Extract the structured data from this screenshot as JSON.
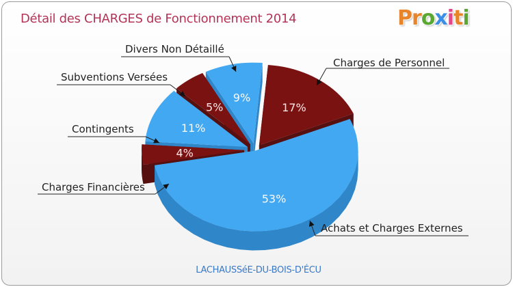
{
  "title": "Détail des CHARGES de Fonctionnement 2014",
  "logo": {
    "letters": [
      "P",
      "r",
      "o",
      "x",
      "i",
      "t",
      "i"
    ],
    "colors": [
      "#e8842a",
      "#e8842a",
      "#5aa832",
      "#3a8ee6",
      "#e04a8a",
      "#e8842a",
      "#5aa832"
    ]
  },
  "commune": "LACHAUSSéE-DU-BOIS-D'ÉCU",
  "colors": {
    "title": "#b33356",
    "blue": "#43a8f2",
    "blue_side": "#2f86c8",
    "red": "#7a1212",
    "red_side": "#571010",
    "label_text": "#222222",
    "commune": "#3a78c8"
  },
  "chart_data": {
    "type": "pie",
    "title": "Détail des CHARGES de Fonctionnement 2014",
    "slices": [
      {
        "label": "Charges de Personnel",
        "value": 17,
        "display": "17%",
        "color": "red"
      },
      {
        "label": "Achats et Charges Externes",
        "value": 53,
        "display": "53%",
        "color": "blue"
      },
      {
        "label": "Charges Financières",
        "value": 4,
        "display": "4%",
        "color": "red"
      },
      {
        "label": "Contingents",
        "value": 11,
        "display": "11%",
        "color": "blue"
      },
      {
        "label": "Subventions Versées",
        "value": 5,
        "display": "5%",
        "color": "red"
      },
      {
        "label": "Divers Non Détaillé",
        "value": 9,
        "display": "9%",
        "color": "blue"
      }
    ]
  }
}
